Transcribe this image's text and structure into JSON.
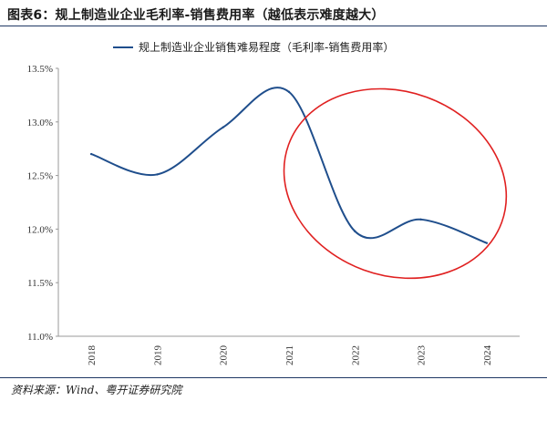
{
  "figure_title": "图表6：规上制造业企业毛利率-销售费用率（越低表示难度越大）",
  "source": "资料来源：Wind、粤开证券研究院",
  "chart_data": {
    "type": "line",
    "categories": [
      "2018",
      "2019",
      "2020",
      "2021",
      "2022",
      "2023",
      "2024"
    ],
    "series": [
      {
        "name": "规上制造业企业销售难易程度（毛利率-销售费用率）",
        "values": [
          12.7,
          12.51,
          12.95,
          13.28,
          11.98,
          12.09,
          11.87
        ],
        "color": "#1f4e8c"
      }
    ],
    "yticks": [
      "11.0%",
      "11.5%",
      "12.0%",
      "12.5%",
      "13.0%",
      "13.5%"
    ],
    "ylim": [
      11.0,
      13.5
    ],
    "grid": false,
    "legend_position": "top-center",
    "annotation": {
      "shape": "ellipse",
      "color": "#e02020"
    }
  }
}
